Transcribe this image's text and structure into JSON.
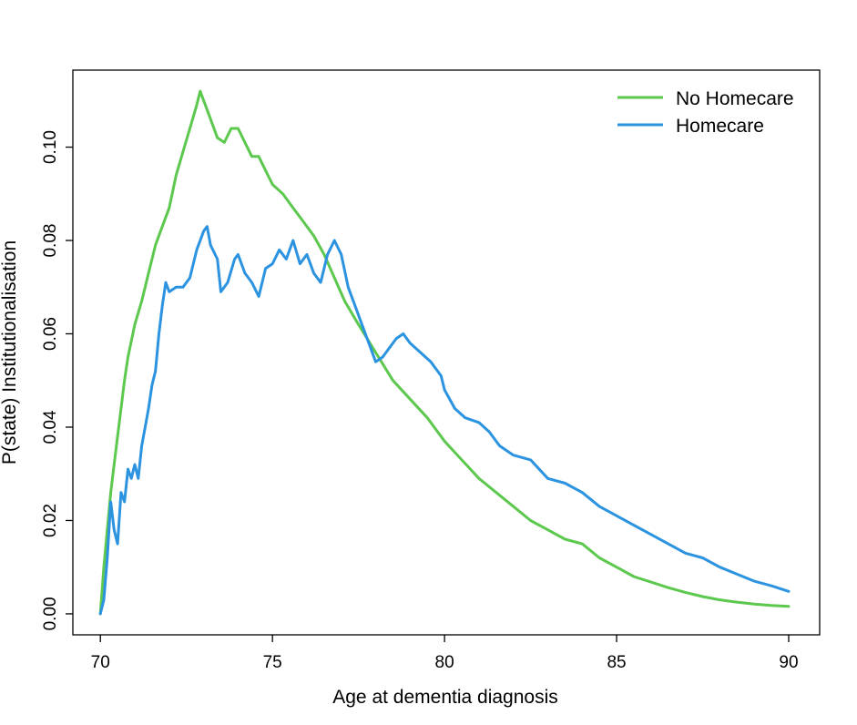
{
  "chart_data": {
    "type": "line",
    "title": "",
    "xlabel": "Age at dementia diagnosis",
    "ylabel": "P(state) Institutionalisation",
    "xlim": [
      69.2,
      90.9
    ],
    "ylim": [
      -0.0045,
      0.1165
    ],
    "x_ticks": [
      70,
      75,
      80,
      85,
      90
    ],
    "x_tick_labels": [
      "70",
      "75",
      "80",
      "85",
      "90"
    ],
    "y_ticks": [
      0.0,
      0.02,
      0.04,
      0.06,
      0.08,
      0.1
    ],
    "y_tick_labels": [
      "0.00",
      "0.02",
      "0.04",
      "0.06",
      "0.08",
      "0.10"
    ],
    "grid": false,
    "legend_position": "top-right",
    "series": [
      {
        "name": "No Homecare",
        "color": "#5cc84e",
        "points": [
          [
            70.0,
            0.0
          ],
          [
            70.1,
            0.01
          ],
          [
            70.2,
            0.018
          ],
          [
            70.3,
            0.026
          ],
          [
            70.4,
            0.032
          ],
          [
            70.5,
            0.038
          ],
          [
            70.6,
            0.044
          ],
          [
            70.7,
            0.05
          ],
          [
            70.8,
            0.055
          ],
          [
            71.0,
            0.062
          ],
          [
            71.2,
            0.067
          ],
          [
            71.4,
            0.073
          ],
          [
            71.6,
            0.079
          ],
          [
            71.8,
            0.083
          ],
          [
            72.0,
            0.087
          ],
          [
            72.2,
            0.094
          ],
          [
            72.4,
            0.099
          ],
          [
            72.6,
            0.104
          ],
          [
            72.8,
            0.109
          ],
          [
            72.9,
            0.112
          ],
          [
            73.0,
            0.11
          ],
          [
            73.2,
            0.106
          ],
          [
            73.4,
            0.102
          ],
          [
            73.6,
            0.101
          ],
          [
            73.8,
            0.104
          ],
          [
            74.0,
            0.104
          ],
          [
            74.2,
            0.101
          ],
          [
            74.4,
            0.098
          ],
          [
            74.6,
            0.098
          ],
          [
            74.8,
            0.095
          ],
          [
            75.0,
            0.092
          ],
          [
            75.3,
            0.09
          ],
          [
            75.6,
            0.087
          ],
          [
            75.9,
            0.084
          ],
          [
            76.2,
            0.081
          ],
          [
            76.5,
            0.077
          ],
          [
            76.8,
            0.072
          ],
          [
            77.1,
            0.067
          ],
          [
            77.5,
            0.062
          ],
          [
            78.0,
            0.056
          ],
          [
            78.5,
            0.05
          ],
          [
            79.0,
            0.046
          ],
          [
            79.5,
            0.042
          ],
          [
            80.0,
            0.037
          ],
          [
            80.5,
            0.033
          ],
          [
            81.0,
            0.029
          ],
          [
            81.5,
            0.026
          ],
          [
            82.0,
            0.023
          ],
          [
            82.5,
            0.02
          ],
          [
            83.0,
            0.018
          ],
          [
            83.5,
            0.016
          ],
          [
            84.0,
            0.015
          ],
          [
            84.5,
            0.012
          ],
          [
            85.0,
            0.01
          ],
          [
            85.5,
            0.008
          ],
          [
            86.0,
            0.0068
          ],
          [
            86.5,
            0.0056
          ],
          [
            87.0,
            0.0046
          ],
          [
            87.5,
            0.0037
          ],
          [
            88.0,
            0.003
          ],
          [
            88.5,
            0.0025
          ],
          [
            89.0,
            0.0021
          ],
          [
            89.5,
            0.0018
          ],
          [
            90.0,
            0.0016
          ]
        ]
      },
      {
        "name": "Homecare",
        "color": "#2b93e0",
        "points": [
          [
            70.0,
            0.0
          ],
          [
            70.1,
            0.003
          ],
          [
            70.2,
            0.012
          ],
          [
            70.3,
            0.024
          ],
          [
            70.4,
            0.018
          ],
          [
            70.5,
            0.015
          ],
          [
            70.6,
            0.026
          ],
          [
            70.7,
            0.024
          ],
          [
            70.8,
            0.031
          ],
          [
            70.9,
            0.029
          ],
          [
            71.0,
            0.032
          ],
          [
            71.1,
            0.029
          ],
          [
            71.2,
            0.036
          ],
          [
            71.3,
            0.04
          ],
          [
            71.4,
            0.044
          ],
          [
            71.5,
            0.049
          ],
          [
            71.6,
            0.052
          ],
          [
            71.7,
            0.06
          ],
          [
            71.8,
            0.066
          ],
          [
            71.9,
            0.071
          ],
          [
            72.0,
            0.069
          ],
          [
            72.2,
            0.07
          ],
          [
            72.4,
            0.07
          ],
          [
            72.6,
            0.072
          ],
          [
            72.8,
            0.078
          ],
          [
            73.0,
            0.082
          ],
          [
            73.1,
            0.083
          ],
          [
            73.2,
            0.079
          ],
          [
            73.4,
            0.076
          ],
          [
            73.5,
            0.069
          ],
          [
            73.7,
            0.071
          ],
          [
            73.9,
            0.076
          ],
          [
            74.0,
            0.077
          ],
          [
            74.2,
            0.073
          ],
          [
            74.4,
            0.071
          ],
          [
            74.6,
            0.068
          ],
          [
            74.8,
            0.074
          ],
          [
            75.0,
            0.075
          ],
          [
            75.2,
            0.078
          ],
          [
            75.4,
            0.076
          ],
          [
            75.6,
            0.08
          ],
          [
            75.8,
            0.075
          ],
          [
            76.0,
            0.077
          ],
          [
            76.2,
            0.073
          ],
          [
            76.4,
            0.071
          ],
          [
            76.6,
            0.077
          ],
          [
            76.8,
            0.08
          ],
          [
            77.0,
            0.077
          ],
          [
            77.2,
            0.07
          ],
          [
            77.4,
            0.066
          ],
          [
            77.6,
            0.062
          ],
          [
            77.8,
            0.058
          ],
          [
            78.0,
            0.054
          ],
          [
            78.2,
            0.055
          ],
          [
            78.4,
            0.057
          ],
          [
            78.6,
            0.059
          ],
          [
            78.8,
            0.06
          ],
          [
            79.0,
            0.058
          ],
          [
            79.3,
            0.056
          ],
          [
            79.6,
            0.054
          ],
          [
            79.9,
            0.051
          ],
          [
            80.0,
            0.048
          ],
          [
            80.3,
            0.044
          ],
          [
            80.6,
            0.042
          ],
          [
            81.0,
            0.041
          ],
          [
            81.3,
            0.039
          ],
          [
            81.6,
            0.036
          ],
          [
            82.0,
            0.034
          ],
          [
            82.5,
            0.033
          ],
          [
            83.0,
            0.029
          ],
          [
            83.5,
            0.028
          ],
          [
            84.0,
            0.026
          ],
          [
            84.5,
            0.023
          ],
          [
            85.0,
            0.021
          ],
          [
            85.5,
            0.019
          ],
          [
            86.0,
            0.017
          ],
          [
            86.5,
            0.015
          ],
          [
            87.0,
            0.013
          ],
          [
            87.5,
            0.012
          ],
          [
            88.0,
            0.01
          ],
          [
            88.5,
            0.0085
          ],
          [
            89.0,
            0.007
          ],
          [
            89.5,
            0.006
          ],
          [
            90.0,
            0.0048
          ]
        ]
      }
    ]
  }
}
